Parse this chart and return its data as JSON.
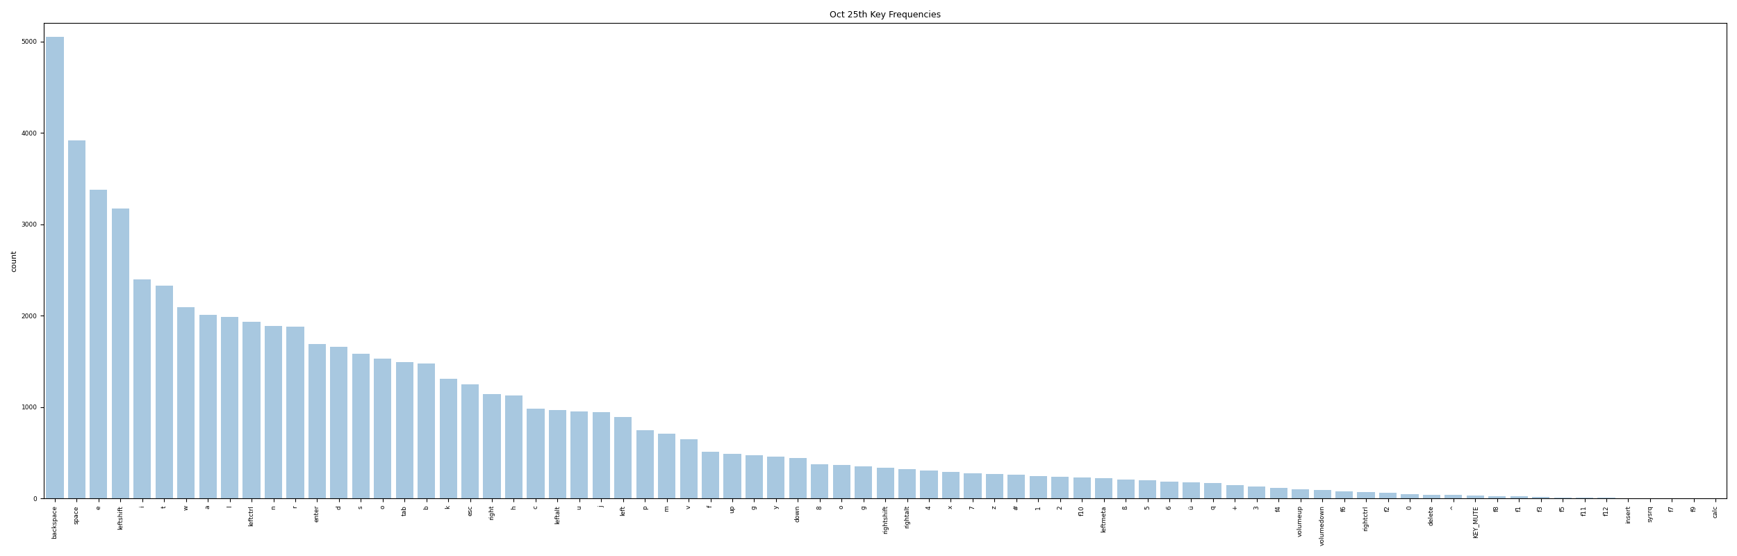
{
  "title": "Oct 25th Key Frequencies",
  "ylabel": "count",
  "bar_color": "#a8c8e0",
  "categories": [
    "backspace",
    "space",
    "e",
    "leftshift",
    "i",
    "t",
    "w",
    "a",
    "l",
    "leftctrl",
    "n",
    "r",
    "enter",
    "d",
    "s",
    "o",
    "tab",
    "b",
    "k",
    "esc",
    "right",
    "h",
    "c",
    "leftalt",
    "u",
    "j",
    "left",
    "p",
    "m",
    "v",
    "f",
    "up",
    "g",
    "y",
    "down",
    "8",
    "o",
    "g",
    "rightshift",
    "rightalt",
    "4",
    "x",
    "7",
    "z",
    "#",
    "1",
    "2",
    "f10",
    "leftmeta",
    "ß",
    "5",
    "6",
    "ü",
    "q",
    "+",
    "3",
    "f4",
    "volumeup",
    "volumedown",
    "f6",
    "rightctrl",
    "f2",
    "0",
    "delete",
    "^",
    "KEY_MUTE",
    "f8",
    "f1",
    "f3",
    "f5",
    "f11",
    "f12",
    "insert",
    "sysrq",
    "f7",
    "f9",
    "calc"
  ],
  "values": [
    5050,
    3920,
    3380,
    3170,
    2400,
    2330,
    2090,
    2010,
    1990,
    1930,
    1890,
    1880,
    1690,
    1660,
    1580,
    1530,
    1490,
    1480,
    1310,
    1250,
    1140,
    1130,
    980,
    970,
    955,
    945,
    890,
    750,
    710,
    650,
    510,
    490,
    470,
    455,
    445,
    375,
    365,
    355,
    335,
    325,
    305,
    290,
    275,
    268,
    258,
    248,
    240,
    230,
    220,
    208,
    198,
    188,
    178,
    168,
    148,
    128,
    118,
    100,
    90,
    80,
    70,
    60,
    50,
    42,
    38,
    32,
    28,
    22,
    18,
    13,
    9,
    7,
    5,
    4,
    3,
    2,
    1
  ],
  "figsize": [
    25.0,
    8.0
  ],
  "dpi": 100,
  "title_fontsize": 9,
  "tick_fontsize": 6.5,
  "ylabel_fontsize": 8,
  "ylim": [
    0,
    5200
  ]
}
